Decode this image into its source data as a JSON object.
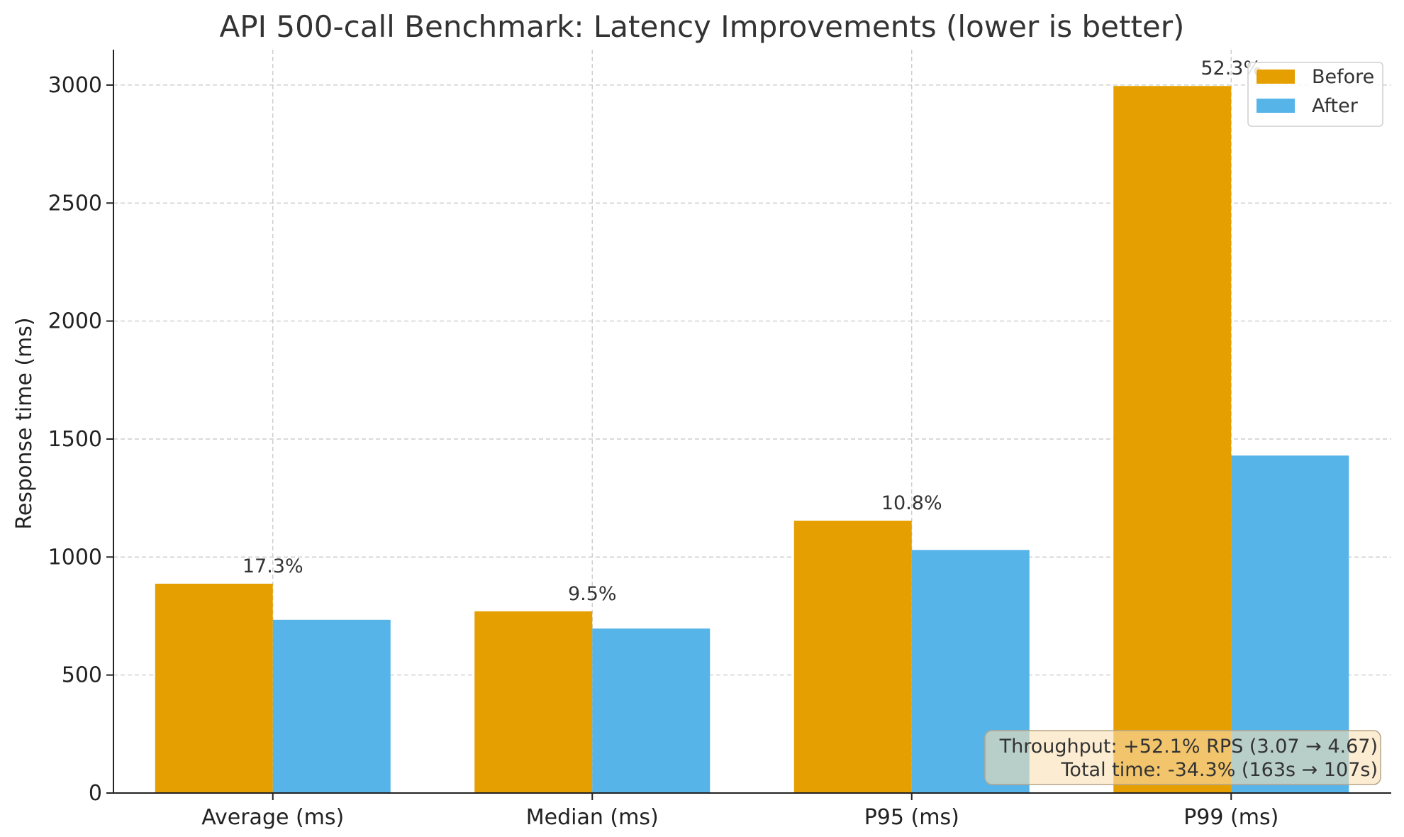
{
  "chart_data": {
    "type": "bar",
    "title": "API 500-call Benchmark: Latency Improvements (lower is better)",
    "xlabel": "",
    "ylabel": "Response time (ms)",
    "ylim": [
      0,
      3150
    ],
    "yticks": [
      0,
      500,
      1000,
      1500,
      2000,
      2500,
      3000
    ],
    "grid": true,
    "categories": [
      "Average (ms)",
      "Median (ms)",
      "P95 (ms)",
      "P99 (ms)"
    ],
    "series": [
      {
        "name": "Before",
        "color": "#E69F00",
        "values": [
          887,
          770,
          1154,
          2996
        ]
      },
      {
        "name": "After",
        "color": "#56B4E9",
        "values": [
          734,
          697,
          1030,
          1430
        ]
      }
    ],
    "improvement_labels": [
      "17.3%",
      "9.5%",
      "10.8%",
      "52.3%"
    ],
    "legend_position": "top-right",
    "annotation": {
      "line1": "Throughput: +52.1% RPS (3.07 → 4.67)",
      "line2": "Total time: -34.3% (163s → 107s)",
      "position": "bottom-right"
    }
  }
}
